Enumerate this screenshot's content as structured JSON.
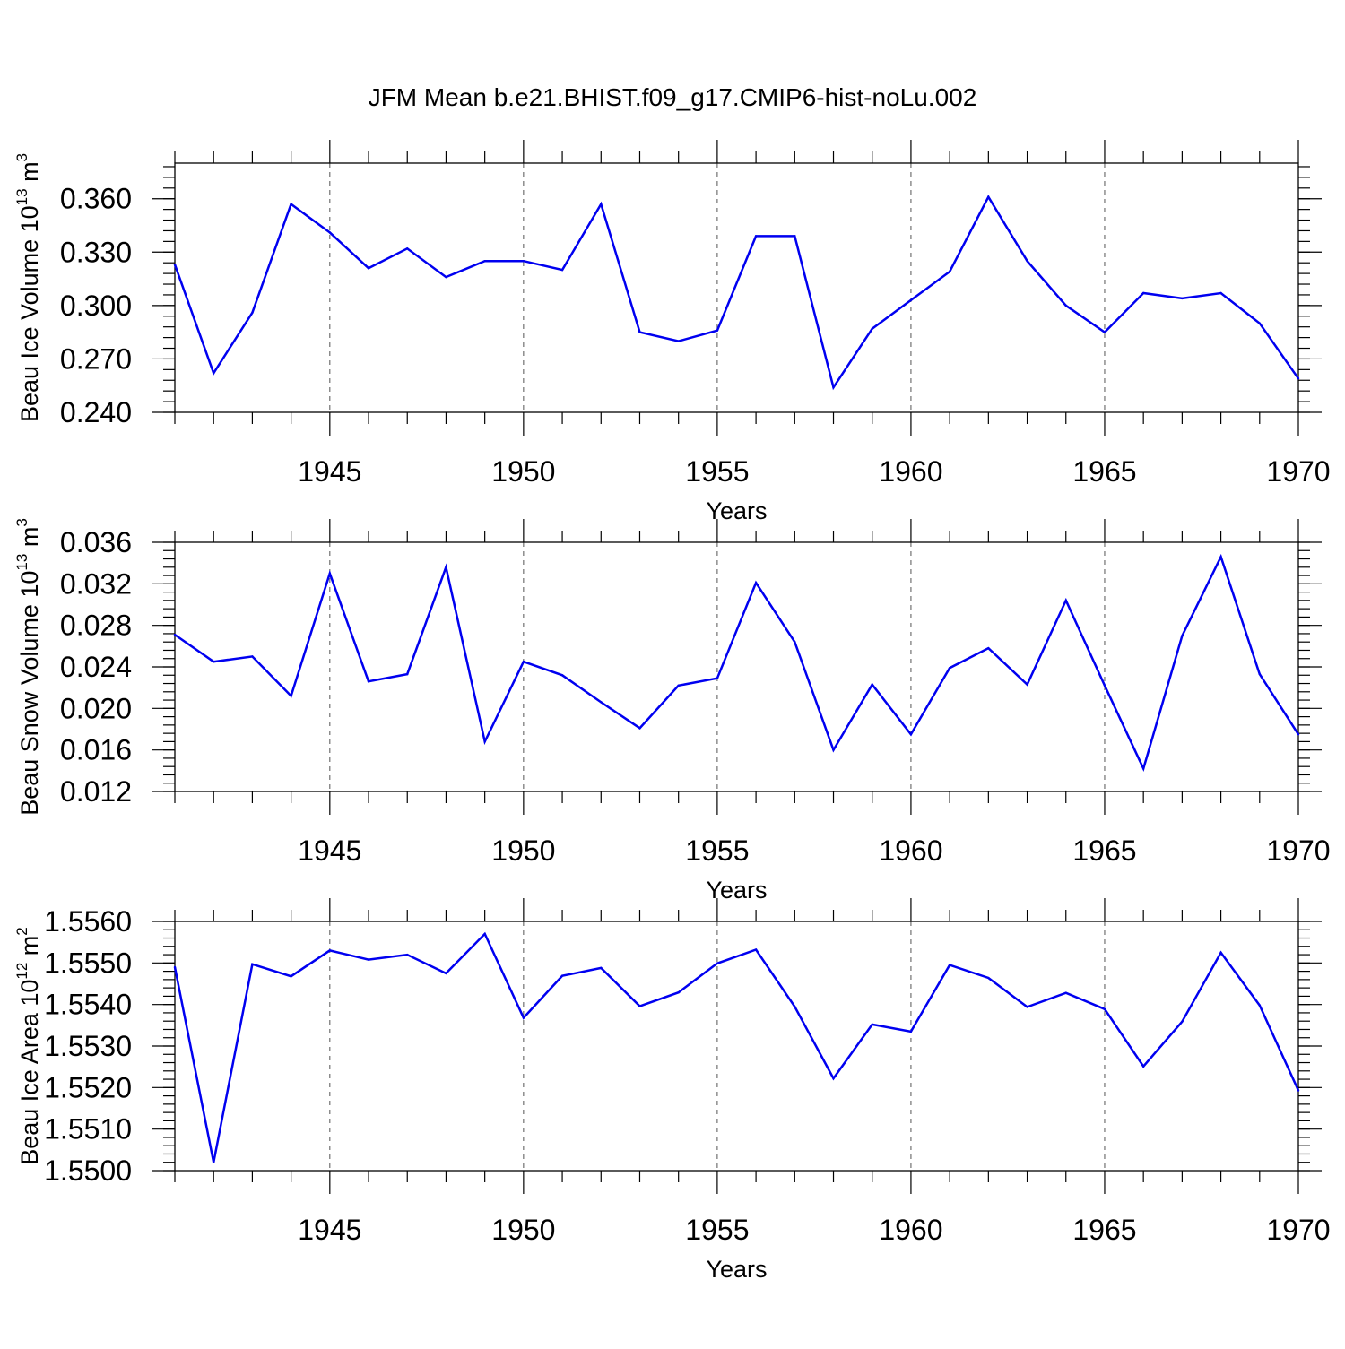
{
  "title": "JFM Mean b.e21.BHIST.f09_g17.CMIP6-hist-noLu.002",
  "colors": {
    "series": "#0000f0",
    "axis": "#000000",
    "grid": "#555555"
  },
  "chart_data": [
    {
      "type": "line",
      "name": "ice-volume",
      "ylabel": {
        "main": "Beau Ice Volume 10",
        "exp": "13",
        "unit": " m",
        "unit_exp": "3"
      },
      "xlabel": "Years",
      "xlim": [
        1941,
        1970
      ],
      "ylim": [
        0.24,
        0.38
      ],
      "yticks": [
        0.24,
        0.27,
        0.3,
        0.33,
        0.36
      ],
      "ytick_labels": [
        "0.240",
        "0.270",
        "0.300",
        "0.330",
        "0.360"
      ],
      "yminor_step": 0.006,
      "grid": "vertical dashed at major x ticks",
      "x": [
        1941,
        1942,
        1943,
        1944,
        1945,
        1946,
        1947,
        1948,
        1949,
        1950,
        1951,
        1952,
        1953,
        1954,
        1955,
        1956,
        1957,
        1958,
        1959,
        1960,
        1961,
        1962,
        1963,
        1964,
        1965,
        1966,
        1967,
        1968,
        1969,
        1970
      ],
      "values": [
        0.323,
        0.262,
        0.296,
        0.357,
        0.341,
        0.321,
        0.332,
        0.316,
        0.325,
        0.325,
        0.32,
        0.357,
        0.285,
        0.28,
        0.286,
        0.339,
        0.339,
        0.254,
        0.287,
        0.303,
        0.319,
        0.361,
        0.325,
        0.3,
        0.285,
        0.307,
        0.304,
        0.307,
        0.29,
        0.259
      ]
    },
    {
      "type": "line",
      "name": "snow-volume",
      "ylabel": {
        "main": "Beau Snow Volume 10",
        "exp": "13",
        "unit": " m",
        "unit_exp": "3"
      },
      "xlabel": "Years",
      "xlim": [
        1941,
        1970
      ],
      "ylim": [
        0.012,
        0.036
      ],
      "yticks": [
        0.012,
        0.016,
        0.02,
        0.024,
        0.028,
        0.032,
        0.036
      ],
      "ytick_labels": [
        "0.012",
        "0.016",
        "0.020",
        "0.024",
        "0.028",
        "0.032",
        "0.036"
      ],
      "yminor_step": 0.0008,
      "grid": "vertical dashed at major x ticks",
      "x": [
        1941,
        1942,
        1943,
        1944,
        1945,
        1946,
        1947,
        1948,
        1949,
        1950,
        1951,
        1952,
        1953,
        1954,
        1955,
        1956,
        1957,
        1958,
        1959,
        1960,
        1961,
        1962,
        1963,
        1964,
        1965,
        1966,
        1967,
        1968,
        1969,
        1970
      ],
      "values": [
        0.0271,
        0.0245,
        0.025,
        0.0212,
        0.033,
        0.0226,
        0.0233,
        0.0336,
        0.0168,
        0.0245,
        0.0232,
        0.0206,
        0.0181,
        0.0222,
        0.0229,
        0.0321,
        0.0264,
        0.016,
        0.0223,
        0.0175,
        0.0239,
        0.0258,
        0.0223,
        0.0304,
        0.0222,
        0.0142,
        0.027,
        0.0346,
        0.0233,
        0.0175
      ]
    },
    {
      "type": "line",
      "name": "ice-area",
      "ylabel": {
        "main": "Beau Ice Area 10",
        "exp": "12",
        "unit": " m",
        "unit_exp": "2"
      },
      "xlabel": "Years",
      "xlim": [
        1941,
        1970
      ],
      "ylim": [
        1.55,
        1.556
      ],
      "yticks": [
        1.55,
        1.551,
        1.552,
        1.553,
        1.554,
        1.555,
        1.556
      ],
      "ytick_labels": [
        "1.5500",
        "1.5510",
        "1.5520",
        "1.5530",
        "1.5540",
        "1.5550",
        "1.5560"
      ],
      "yminor_step": 0.0002,
      "grid": "vertical dashed at major x ticks",
      "x": [
        1941,
        1942,
        1943,
        1944,
        1945,
        1946,
        1947,
        1948,
        1949,
        1950,
        1951,
        1952,
        1953,
        1954,
        1955,
        1956,
        1957,
        1958,
        1959,
        1960,
        1961,
        1962,
        1963,
        1964,
        1965,
        1966,
        1967,
        1968,
        1969,
        1970
      ],
      "values": [
        1.5549,
        1.5502,
        1.55497,
        1.55468,
        1.5553,
        1.55508,
        1.5552,
        1.55475,
        1.5557,
        1.55368,
        1.55469,
        1.55488,
        1.55396,
        1.55429,
        1.55499,
        1.55532,
        1.55395,
        1.55222,
        1.55352,
        1.55335,
        1.55495,
        1.55464,
        1.55394,
        1.55428,
        1.55389,
        1.55251,
        1.55359,
        1.55525,
        1.55398,
        1.55193
      ]
    }
  ],
  "xticks": [
    1945,
    1950,
    1955,
    1960,
    1965,
    1970
  ],
  "xtick_labels": [
    "1945",
    "1950",
    "1955",
    "1960",
    "1965",
    "1970"
  ]
}
